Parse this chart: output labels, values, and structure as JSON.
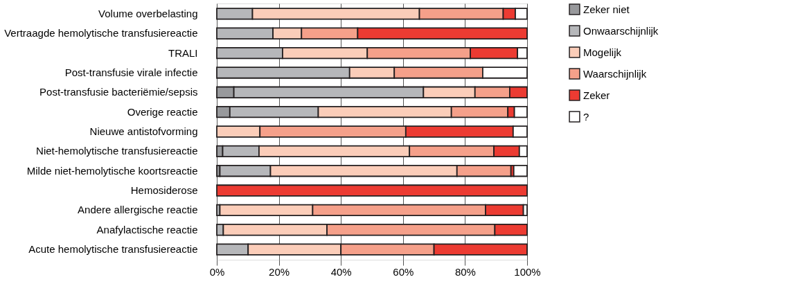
{
  "chart_data": {
    "type": "bar",
    "orientation": "horizontal",
    "stacked": true,
    "categories": [
      "Volume overbelasting",
      "Vertraagde hemolytische transfusiereactie",
      "TRALI",
      "Post-transfusie virale infectie",
      "Post-transfusie bacteriëmie/sepsis",
      "Overige reactie",
      "Nieuwe antistofvorming",
      "Niet-hemolytische transfusiereactie",
      "Milde niet-hemolytische koortsreactie",
      "Hemosiderose",
      "Andere allergische reactie",
      "Anafylactische reactie",
      "Acute hemolytische transfusiereactie"
    ],
    "series": [
      {
        "name": "Zeker niet",
        "color": "#98999c",
        "values": [
          null,
          null,
          null,
          null,
          5.5,
          4.2,
          null,
          1.9,
          1.0,
          null,
          null,
          null,
          null
        ]
      },
      {
        "name": "Onwaarschijnlijk",
        "color": "#b6b7ba",
        "values": [
          11.5,
          18.1,
          21.2,
          42.8,
          61.1,
          28.5,
          null,
          11.7,
          16.3,
          null,
          1.0,
          2.1,
          10.1
        ]
      },
      {
        "name": "Mogelijk",
        "color": "#fbcdb9",
        "values": [
          53.8,
          9.2,
          27.3,
          14.4,
          16.6,
          42.9,
          13.9,
          48.5,
          60.1,
          null,
          29.9,
          33.4,
          29.9
        ]
      },
      {
        "name": "Waarschijnlijk",
        "color": "#f5a08a",
        "values": [
          27.0,
          18.1,
          33.2,
          28.5,
          11.2,
          18.2,
          47.0,
          27.2,
          17.4,
          null,
          55.7,
          54.1,
          30.0
        ]
      },
      {
        "name": "Zeker",
        "color": "#ec3b32",
        "values": [
          3.9,
          54.6,
          15.2,
          null,
          5.6,
          2.1,
          34.6,
          8.2,
          0.9,
          100,
          12.2,
          10.4,
          30.0
        ]
      },
      {
        "name": "?",
        "color": "#ffffff",
        "values": [
          3.8,
          null,
          3.1,
          14.3,
          null,
          4.1,
          4.5,
          2.5,
          4.3,
          null,
          1.2,
          null,
          null
        ]
      }
    ],
    "xlim": [
      0,
      100
    ],
    "xticks": [
      {
        "value": 0,
        "label": "0%"
      },
      {
        "value": 20,
        "label": "20%"
      },
      {
        "value": 40,
        "label": "40%"
      },
      {
        "value": 60,
        "label": "60%"
      },
      {
        "value": 80,
        "label": "80%"
      },
      {
        "value": 100,
        "label": "100%"
      }
    ],
    "grid": "x",
    "legend": "right"
  }
}
